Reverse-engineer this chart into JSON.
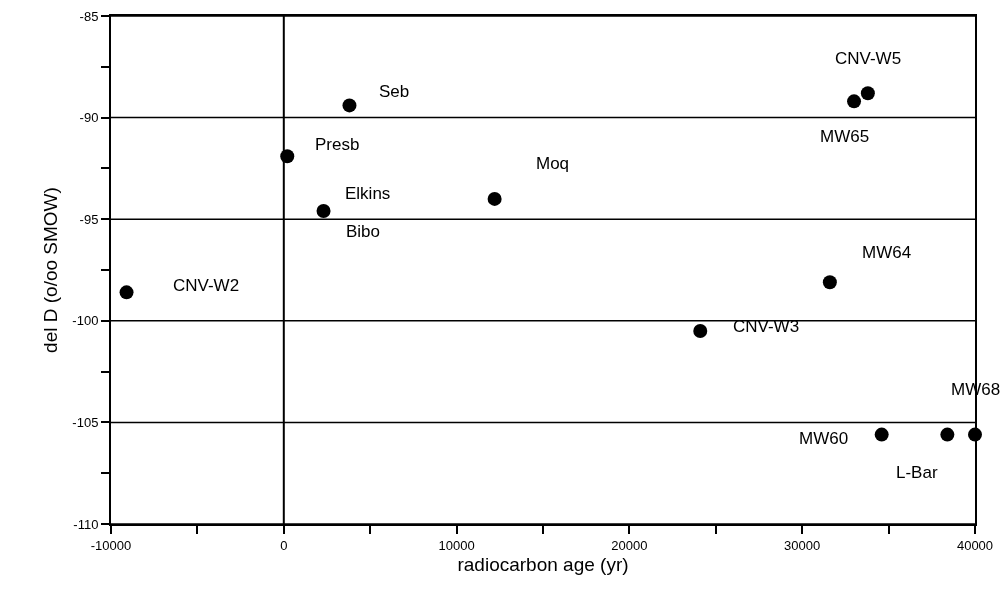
{
  "chart_data": {
    "type": "scatter",
    "xlabel": "radiocarbon age (yr)",
    "ylabel": "del D (o/oo SMOW)",
    "x": [
      -9100,
      200,
      3800,
      2300,
      12200,
      33800,
      33000,
      31600,
      24100,
      34600,
      38400,
      40000
    ],
    "values": [
      -98.6,
      -91.9,
      -89.4,
      -94.6,
      -94.0,
      -88.8,
      -89.2,
      -98.1,
      -100.5,
      -105.6,
      -105.6,
      -105.6
    ],
    "color": "#000000",
    "marker": "circle",
    "xlim": [
      -10000,
      40000
    ],
    "xticks": [
      -10000,
      {
        "value": -5000,
        "label": null
      },
      0,
      {
        "value": 5000,
        "label": null
      },
      10000,
      {
        "value": 15000,
        "label": null
      },
      20000,
      {
        "value": 25000,
        "label": null
      },
      30000,
      {
        "value": 35000,
        "label": null
      },
      40000
    ],
    "ylim": [
      -110,
      -85
    ],
    "yticks": [
      -110,
      {
        "value": -107.5,
        "label": null
      },
      -105,
      {
        "value": -102.5,
        "label": null
      },
      -100,
      {
        "value": -97.5,
        "label": null
      },
      -95,
      {
        "value": -92.5,
        "label": null
      },
      -90,
      {
        "value": -87.5,
        "label": null
      },
      -85
    ],
    "grid": "y",
    "ref_lines": [
      {
        "axis": "x",
        "value": 0,
        "color": "#000000"
      }
    ],
    "annotations": [
      {
        "text": "CNV-W2",
        "x": -9100,
        "y": -98.6
      },
      {
        "text": "Seb",
        "x": 3800,
        "y": -89.4
      },
      {
        "text": "Presb",
        "x": 200,
        "y": -91.9
      },
      {
        "text": "Elkins",
        "x": 2300,
        "y": -94.6
      },
      {
        "text": "Bibo",
        "x": 2300,
        "y": -94.6
      },
      {
        "text": "Moq",
        "x": 12200,
        "y": -94.0
      },
      {
        "text": "CNV-W5",
        "x": 33800,
        "y": -88.8
      },
      {
        "text": "MW65",
        "x": 33000,
        "y": -89.2
      },
      {
        "text": "MW64",
        "x": 31600,
        "y": -98.1
      },
      {
        "text": "CNV-W3",
        "x": 24100,
        "y": -100.5
      },
      {
        "text": "MW60",
        "x": 34600,
        "y": -105.6
      },
      {
        "text": "L-Bar",
        "x": 38400,
        "y": -105.6
      },
      {
        "text": "MW68",
        "x": 40000,
        "y": -105.6
      }
    ]
  }
}
